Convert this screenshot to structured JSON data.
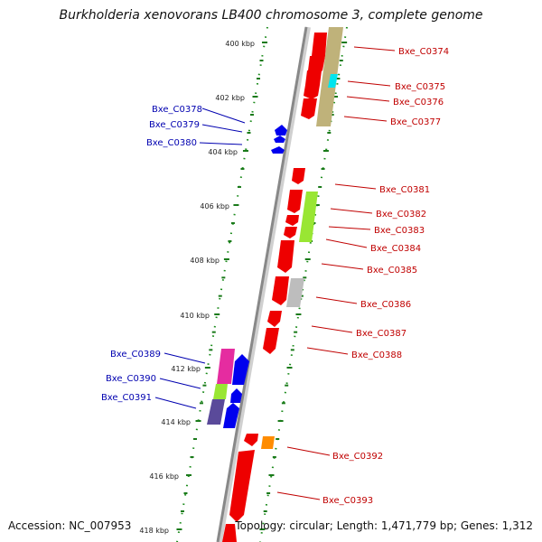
{
  "title": "Burkholderia xenovorans LB400 chromosome 3, complete genome",
  "accession": "Accession: NC_007953",
  "topology": "Topology: circular; Length: 1,471,779 bp; Genes: 1,312",
  "scale": {
    "ticks": [
      {
        "label": "400 kbp"
      },
      {
        "label": "402 kbp"
      },
      {
        "label": "404 kbp"
      },
      {
        "label": "406 kbp"
      },
      {
        "label": "408 kbp"
      },
      {
        "label": "410 kbp"
      },
      {
        "label": "412 kbp"
      },
      {
        "label": "414 kbp"
      },
      {
        "label": "416 kbp"
      },
      {
        "label": "418 kbp"
      }
    ]
  },
  "genes": {
    "forward": [
      {
        "label": "Bxe_C0374"
      },
      {
        "label": "Bxe_C0375"
      },
      {
        "label": "Bxe_C0376"
      },
      {
        "label": "Bxe_C0377"
      },
      {
        "label": "Bxe_C0381"
      },
      {
        "label": "Bxe_C0382"
      },
      {
        "label": "Bxe_C0383"
      },
      {
        "label": "Bxe_C0384"
      },
      {
        "label": "Bxe_C0385"
      },
      {
        "label": "Bxe_C0386"
      },
      {
        "label": "Bxe_C0387"
      },
      {
        "label": "Bxe_C0388"
      },
      {
        "label": "Bxe_C0392"
      },
      {
        "label": "Bxe_C0393"
      }
    ],
    "reverse": [
      {
        "label": "Bxe_C0378"
      },
      {
        "label": "Bxe_C0379"
      },
      {
        "label": "Bxe_C0380"
      },
      {
        "label": "Bxe_C0389"
      },
      {
        "label": "Bxe_C0390"
      },
      {
        "label": "Bxe_C0391"
      }
    ]
  },
  "colors": {
    "forward_cds": "#ee0000",
    "reverse_cds": "#0000ee",
    "backbone": "#888888",
    "tick": "#1a7a1a",
    "forward_label": "#c00000",
    "reverse_label": "#0000b0"
  }
}
